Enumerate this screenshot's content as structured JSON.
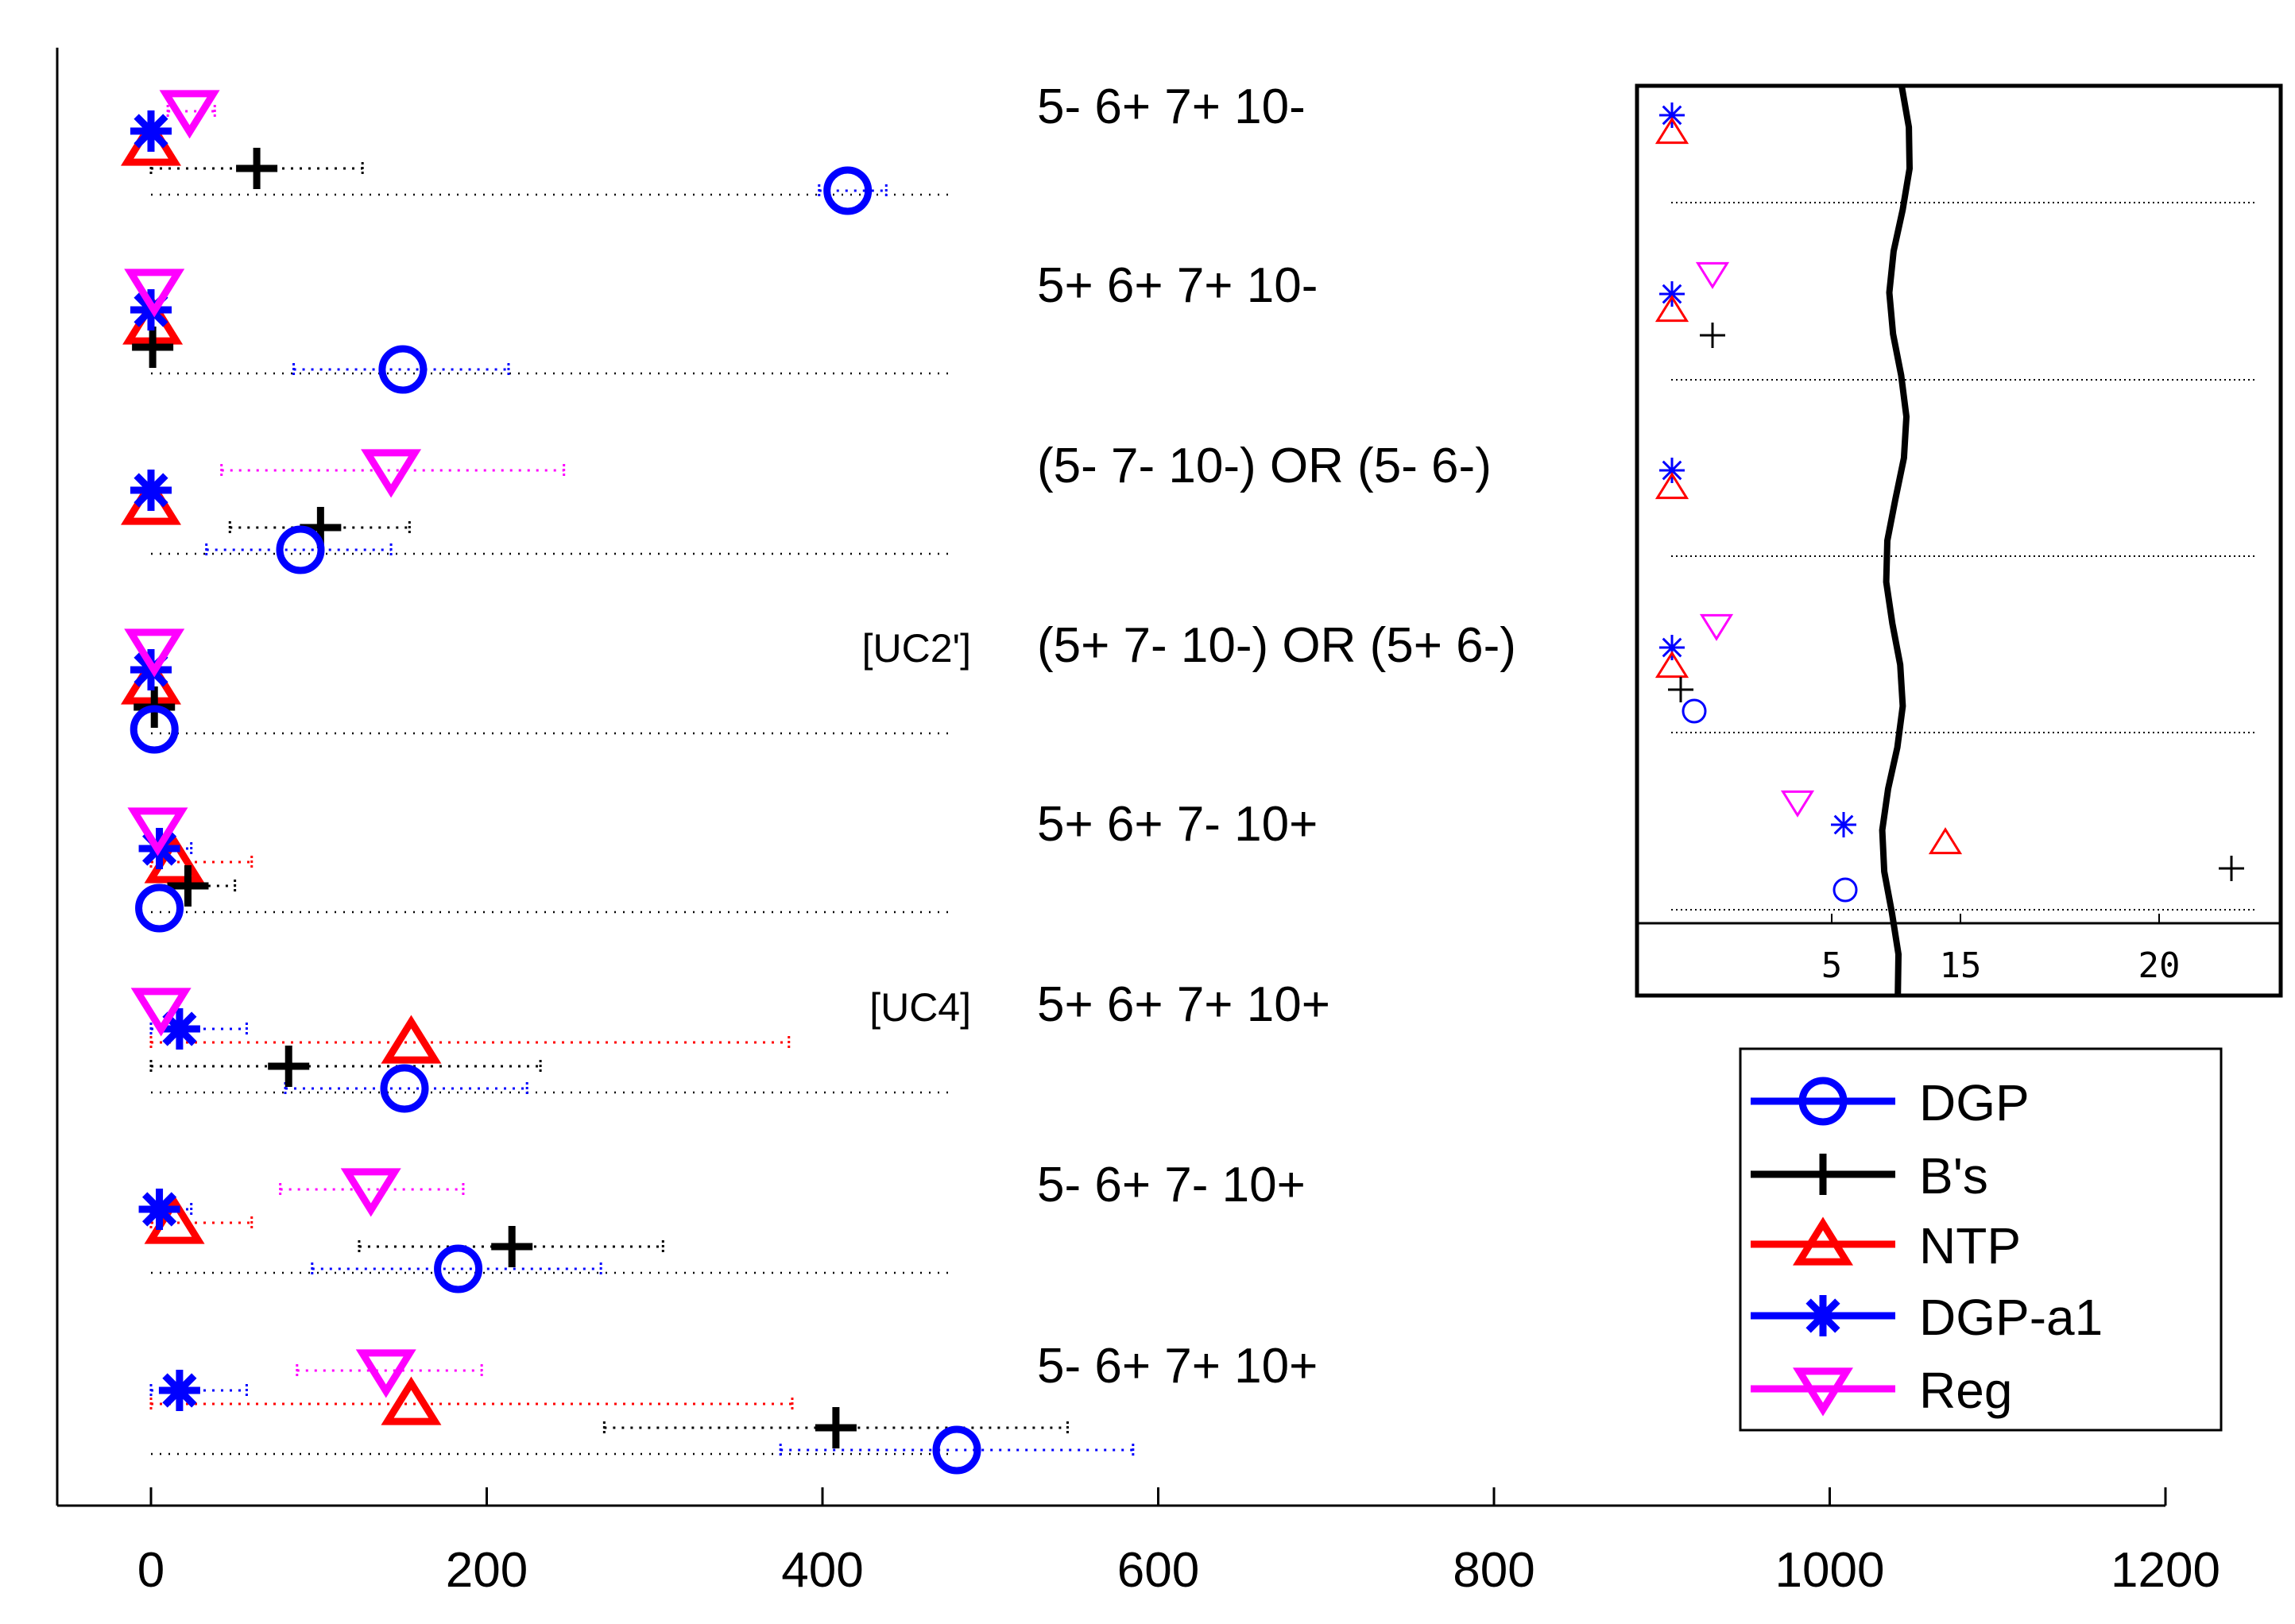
{
  "chart_data": {
    "type": "scatter",
    "title": "",
    "xlabel": "",
    "ylabel": "",
    "xlim": [
      -30,
      1200
    ],
    "xticks": [
      0,
      200,
      400,
      600,
      800,
      1000,
      1200
    ],
    "tick_labels": [
      "0",
      "200",
      "400",
      "600",
      "800",
      "1000",
      "1200"
    ],
    "rows": [
      {
        "label": "5- 6+ 7+ 10-",
        "tag": ""
      },
      {
        "label": "5+ 6+ 7+ 10-",
        "tag": ""
      },
      {
        "label": "(5- 7- 10-) OR (5- 6-)",
        "tag": ""
      },
      {
        "label": "(5+ 7- 10-) OR (5+ 6-)",
        "tag": "[UC2']"
      },
      {
        "label": "5+ 6+ 7- 10+",
        "tag": ""
      },
      {
        "label": "5+ 6+ 7+ 10+",
        "tag": "[UC4]"
      },
      {
        "label": "5- 6+ 7- 10+",
        "tag": ""
      },
      {
        "label": "5- 6+ 7+ 10+",
        "tag": ""
      }
    ],
    "series": [
      {
        "name": "DGP",
        "color": "#0000ff",
        "marker": "circle",
        "points": [
          {
            "row": 0,
            "value": 415,
            "low": 398,
            "high": 438
          },
          {
            "row": 1,
            "value": 150,
            "low": 85,
            "high": 213
          },
          {
            "row": 2,
            "value": 89,
            "low": 33,
            "high": 143
          },
          {
            "row": 3,
            "value": 2,
            "low": null,
            "high": null
          },
          {
            "row": 4,
            "value": 5,
            "low": null,
            "high": null
          },
          {
            "row": 5,
            "value": 151,
            "low": 80,
            "high": 224
          },
          {
            "row": 6,
            "value": 183,
            "low": 96,
            "high": 268
          },
          {
            "row": 7,
            "value": 480,
            "low": 375,
            "high": 585
          }
        ]
      },
      {
        "name": "B's",
        "color": "#000000",
        "marker": "plus",
        "points": [
          {
            "row": 0,
            "value": 63,
            "low": 0,
            "high": 126
          },
          {
            "row": 1,
            "value": 1,
            "low": null,
            "high": null
          },
          {
            "row": 2,
            "value": 101,
            "low": 47,
            "high": 154
          },
          {
            "row": 3,
            "value": 2,
            "low": null,
            "high": null
          },
          {
            "row": 4,
            "value": 22,
            "low": 8,
            "high": 50
          },
          {
            "row": 5,
            "value": 82,
            "low": 0,
            "high": 232
          },
          {
            "row": 6,
            "value": 215,
            "low": 124,
            "high": 305
          },
          {
            "row": 7,
            "value": 408,
            "low": 270,
            "high": 546
          }
        ]
      },
      {
        "name": "NTP",
        "color": "#ff0000",
        "marker": "triangle-up",
        "points": [
          {
            "row": 0,
            "value": 0,
            "low": null,
            "high": null
          },
          {
            "row": 1,
            "value": 1,
            "low": null,
            "high": null
          },
          {
            "row": 2,
            "value": 0,
            "low": null,
            "high": null
          },
          {
            "row": 3,
            "value": 0,
            "low": null,
            "high": null
          },
          {
            "row": 4,
            "value": 14,
            "low": 0,
            "high": 60
          },
          {
            "row": 5,
            "value": 155,
            "low": 0,
            "high": 380
          },
          {
            "row": 6,
            "value": 14,
            "low": 0,
            "high": 60
          },
          {
            "row": 7,
            "value": 155,
            "low": 0,
            "high": 382
          }
        ]
      },
      {
        "name": "DGP-a1",
        "color": "#0000ff",
        "marker": "asterisk",
        "points": [
          {
            "row": 0,
            "value": 0,
            "low": null,
            "high": null
          },
          {
            "row": 1,
            "value": 0,
            "low": null,
            "high": null
          },
          {
            "row": 2,
            "value": 0,
            "low": null,
            "high": null
          },
          {
            "row": 3,
            "value": 0,
            "low": null,
            "high": null
          },
          {
            "row": 4,
            "value": 5,
            "low": 0,
            "high": 24
          },
          {
            "row": 5,
            "value": 17,
            "low": 0,
            "high": 57
          },
          {
            "row": 6,
            "value": 5,
            "low": 0,
            "high": 24
          },
          {
            "row": 7,
            "value": 17,
            "low": 0,
            "high": 57
          }
        ]
      },
      {
        "name": "Reg",
        "color": "#ff00ff",
        "marker": "triangle-down",
        "points": [
          {
            "row": 0,
            "value": 23,
            "low": 10,
            "high": 38
          },
          {
            "row": 1,
            "value": 2,
            "low": null,
            "high": null
          },
          {
            "row": 2,
            "value": 143,
            "low": 42,
            "high": 246
          },
          {
            "row": 3,
            "value": 2,
            "low": null,
            "high": null
          },
          {
            "row": 4,
            "value": 4,
            "low": null,
            "high": null
          },
          {
            "row": 5,
            "value": 6,
            "low": null,
            "high": null
          },
          {
            "row": 6,
            "value": 131,
            "low": 77,
            "high": 186
          },
          {
            "row": 7,
            "value": 140,
            "low": 87,
            "high": 197
          }
        ]
      }
    ],
    "legend": {
      "entries": [
        "DGP",
        "B's",
        "NTP",
        "DGP-a1",
        "Reg"
      ],
      "position": "bottom-right"
    },
    "inset": {
      "description": "zoomed view of rows 1-4 with broken x-axis",
      "xticks_left": [
        "5"
      ],
      "xticks_right": [
        "15",
        "20"
      ]
    }
  }
}
